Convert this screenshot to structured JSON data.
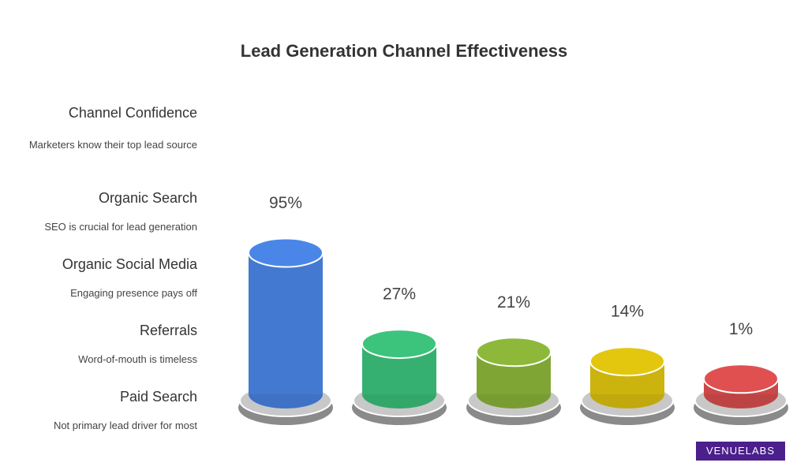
{
  "chart_data": {
    "type": "bar",
    "title": "Lead Generation Channel Effectiveness",
    "categories": [
      "Channel Confidence",
      "Organic Search",
      "Organic Social Media",
      "Referrals",
      "Paid Search"
    ],
    "descriptions": [
      "Marketers know their top lead source",
      "SEO is crucial for lead generation",
      "Engaging presence pays off",
      "Word-of-mouth is timeless",
      "Not primary lead driver for most"
    ],
    "values": [
      95,
      27,
      21,
      14,
      1
    ],
    "value_labels": [
      "95%",
      "27%",
      "21%",
      "14%",
      "1%"
    ],
    "colors": [
      "#4a86e8",
      "#3cc47c",
      "#8db83a",
      "#e3c70f",
      "#e05050"
    ]
  },
  "watermark": "VENUELABS"
}
